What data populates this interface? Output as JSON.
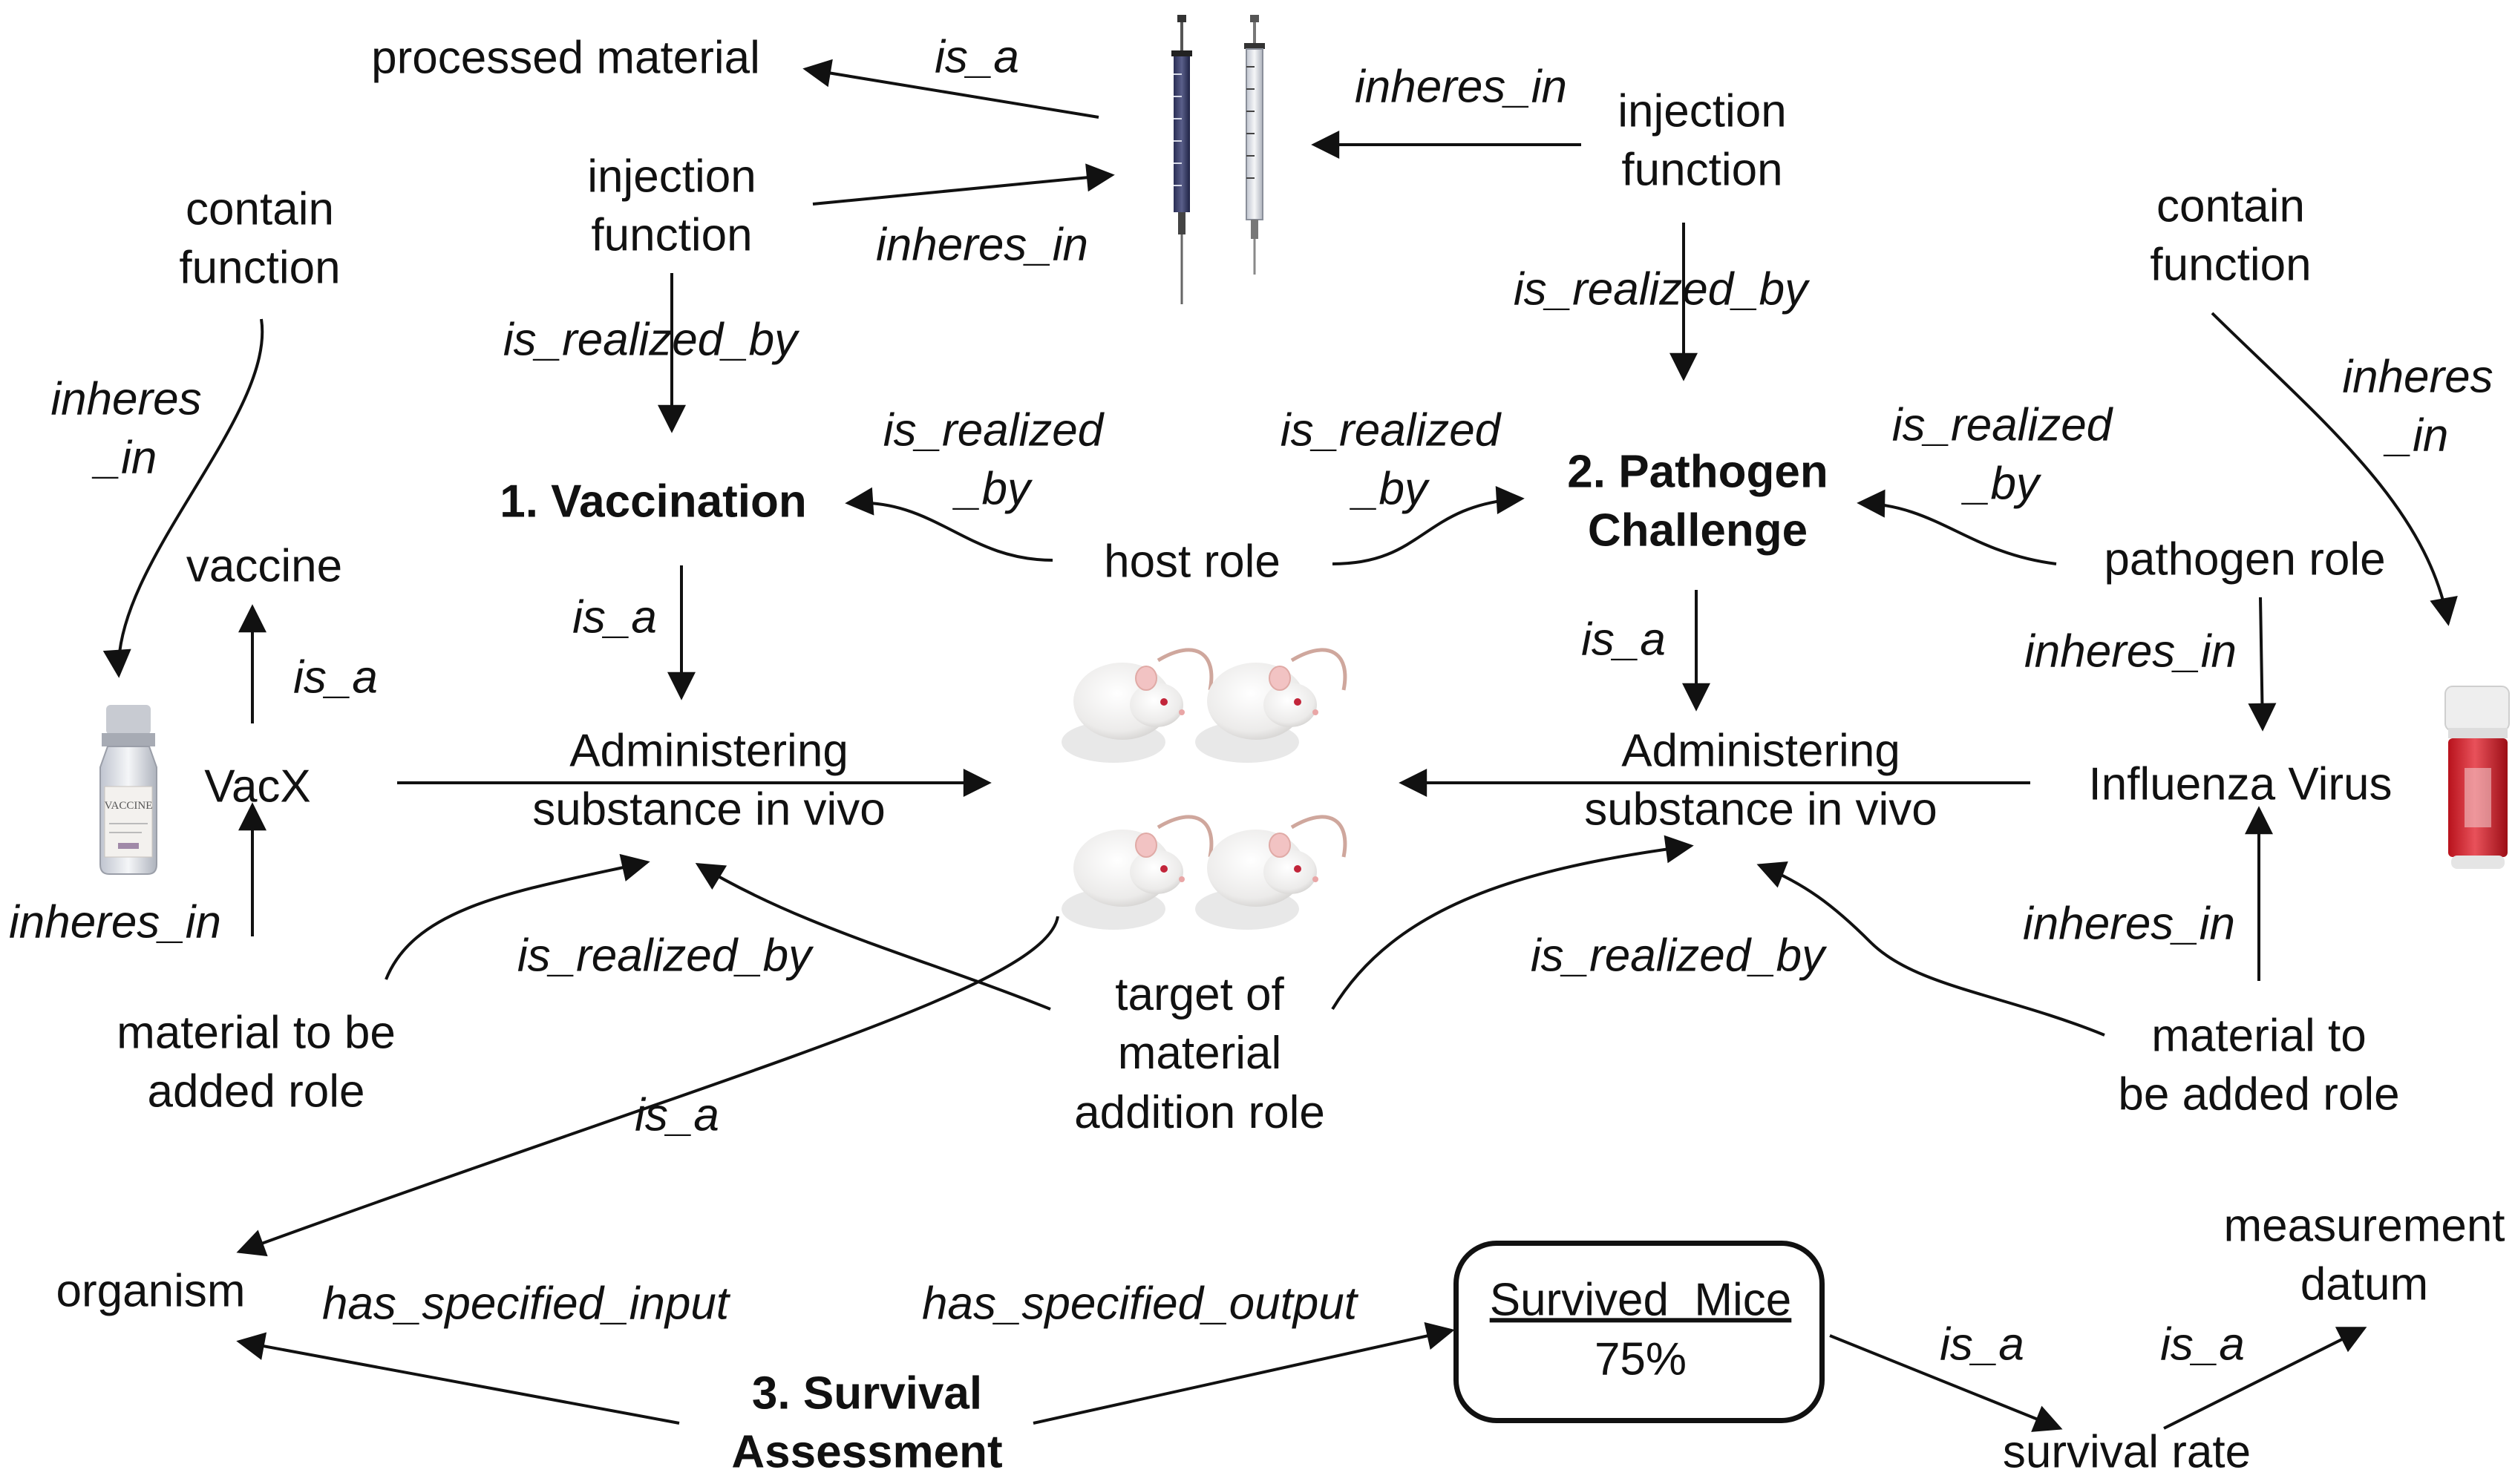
{
  "nodes": {
    "processed_material": "processed material",
    "injection_function_left": "injection\nfunction",
    "injection_function_right": "injection\nfunction",
    "contain_function_left": "contain\nfunction",
    "contain_function_right": "contain\nfunction",
    "vaccination": "1. Vaccination",
    "pathogen_challenge": "2. Pathogen\nChallenge",
    "vaccine": "vaccine",
    "vacx": "VacX",
    "host_role": "host role",
    "pathogen_role": "pathogen role",
    "administering_left": "Administering\nsubstance in vivo",
    "administering_right": "Administering\nsubstance in vivo",
    "influenza_virus": "Influenza Virus",
    "material_added_left": "material to be\nadded role",
    "material_added_right": "material to\nbe added role",
    "target_role": "target of\nmaterial\naddition role",
    "organism": "organism",
    "survival_assessment": "3. Survival\nAssessment",
    "survived_mice_title": "Survived  Mice",
    "survived_mice_value": "75%",
    "survival_rate": "survival rate",
    "measurement_datum": "measurement\ndatum"
  },
  "relations": {
    "is_a_processed": "is_a",
    "inheres_in_syringe_left": "inheres_in",
    "inheres_in_syringe_right": "inheres_in",
    "is_realized_by_inj_left": "is_realized_by",
    "is_realized_by_inj_right": "is_realized_by",
    "inheres_in_contain_left": "inheres\n_in",
    "inheres_in_contain_right": "inheres\n_in",
    "is_realized_host_left": "is_realized\n_by",
    "is_realized_host_right": "is_realized\n_by",
    "is_realized_pathogen": "is_realized\n_by",
    "is_a_vaccine": "is_a",
    "is_a_vaccination": "is_a",
    "is_a_pathogen": "is_a",
    "inheres_in_pathogen_role": "inheres_in",
    "inheres_in_vacx": "inheres_in",
    "inheres_in_influenza": "inheres_in",
    "is_realized_material_left": "is_realized_by",
    "is_realized_material_right": "is_realized_by",
    "is_a_organism": "is_a",
    "has_specified_input": "has_specified_input",
    "has_specified_output": "has_specified_output",
    "is_a_survival_rate": "is_a",
    "is_a_measurement": "is_a"
  },
  "images": {
    "syringes": "syringes-image",
    "vaccine_vial": "vaccine-vial-image",
    "mice": "mice-image",
    "virus_vial": "virus-vial-image",
    "vial_label": "VACCINE"
  }
}
